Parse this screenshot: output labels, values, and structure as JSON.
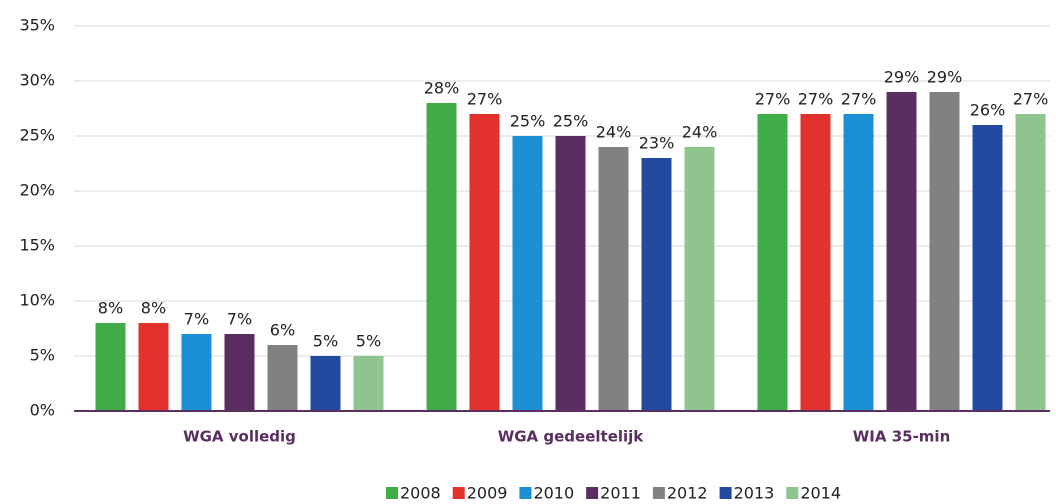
{
  "chart_data": {
    "type": "bar",
    "categories": [
      "WGA volledig",
      "WGA gedeeltelijk",
      "WIA 35-min"
    ],
    "series": [
      {
        "name": "2008",
        "color": "#41ad49",
        "values": [
          8,
          28,
          27
        ],
        "value_labels": [
          "8%",
          "28%",
          "27%"
        ]
      },
      {
        "name": "2009",
        "color": "#e2322b",
        "values": [
          8,
          27,
          27
        ],
        "value_labels": [
          "8%",
          "27%",
          "27%"
        ]
      },
      {
        "name": "2010",
        "color": "#1a8fd4",
        "values": [
          7,
          25,
          27
        ],
        "value_labels": [
          "7%",
          "25%",
          "27%"
        ]
      },
      {
        "name": "2011",
        "color": "#5b2e62",
        "values": [
          7,
          25,
          29
        ],
        "value_labels": [
          "7%",
          "25%",
          "29%"
        ]
      },
      {
        "name": "2012",
        "color": "#7f8183",
        "values": [
          6,
          24,
          29
        ],
        "value_labels": [
          "6%",
          "24%",
          "29%"
        ]
      },
      {
        "name": "2013",
        "color": "#224b9f",
        "values": [
          5,
          23,
          26
        ],
        "value_labels": [
          "5%",
          "23%",
          "26%"
        ]
      },
      {
        "name": "2014",
        "color": "#8fc48f",
        "values": [
          5,
          24,
          27
        ],
        "value_labels": [
          "5%",
          "24%",
          "27%"
        ]
      }
    ],
    "ylim": [
      0,
      35
    ],
    "yticks": [
      {
        "value": 0,
        "label": "0%"
      },
      {
        "value": 5,
        "label": "5%"
      },
      {
        "value": 10,
        "label": "10%"
      },
      {
        "value": 15,
        "label": "15%"
      },
      {
        "value": 20,
        "label": "20%"
      },
      {
        "value": 25,
        "label": "25%"
      },
      {
        "value": 30,
        "label": "30%"
      },
      {
        "value": 35,
        "label": "35%"
      }
    ],
    "grid": true,
    "legend": "bottom"
  }
}
